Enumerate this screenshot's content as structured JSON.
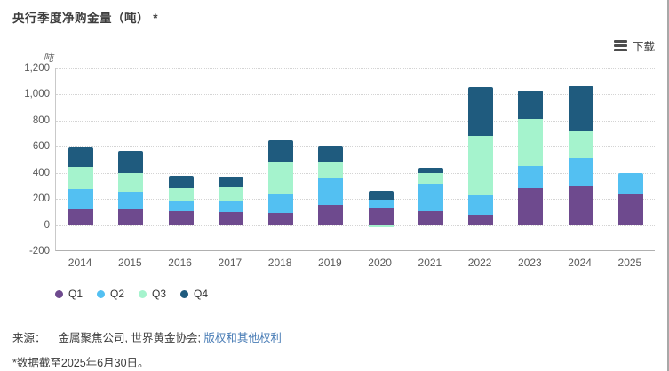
{
  "header": {
    "title": "央行季度净购金量（吨） *"
  },
  "toolbar": {
    "download_label": "下载",
    "menu_icon": "hamburger-icon"
  },
  "chart_data": {
    "type": "bar",
    "stacked": true,
    "title": "央行季度净购金量（吨） *",
    "unit_label": "吨",
    "categories": [
      "2014",
      "2015",
      "2016",
      "2017",
      "2018",
      "2019",
      "2020",
      "2021",
      "2022",
      "2023",
      "2024",
      "2025"
    ],
    "series": [
      {
        "name": "Q1",
        "color": "#6e4a8e",
        "values": [
          128,
          118,
          104,
          97,
          90,
          156,
          135,
          105,
          80,
          280,
          300,
          235
        ]
      },
      {
        "name": "Q2",
        "color": "#53c0f2",
        "values": [
          150,
          140,
          80,
          83,
          148,
          210,
          62,
          210,
          148,
          170,
          216,
          165
        ]
      },
      {
        "name": "Q3",
        "color": "#a5f3cd",
        "values": [
          169,
          141,
          100,
          112,
          240,
          117,
          -15,
          82,
          453,
          365,
          202,
          0
        ]
      },
      {
        "name": "Q4",
        "color": "#1f5b7e",
        "values": [
          147,
          169,
          95,
          82,
          170,
          116,
          62,
          45,
          374,
          215,
          347,
          0
        ]
      }
    ],
    "ylim": [
      -200,
      1200
    ],
    "y_tick_values": [
      1200,
      1000,
      800,
      600,
      400,
      200,
      0,
      -200
    ],
    "y_tick_labels": [
      "1,200",
      "1,000",
      "800",
      "600",
      "400",
      "200",
      "0",
      "-200"
    ],
    "grid": "horizontal-dotted",
    "legend_position": "bottom-left"
  },
  "footer": {
    "source_prefix": "来源：",
    "source_text": "金属聚焦公司, 世界黄金协会;",
    "rights_link": "版权和其他权利",
    "note": "*数据截至2025年6月30日。"
  }
}
